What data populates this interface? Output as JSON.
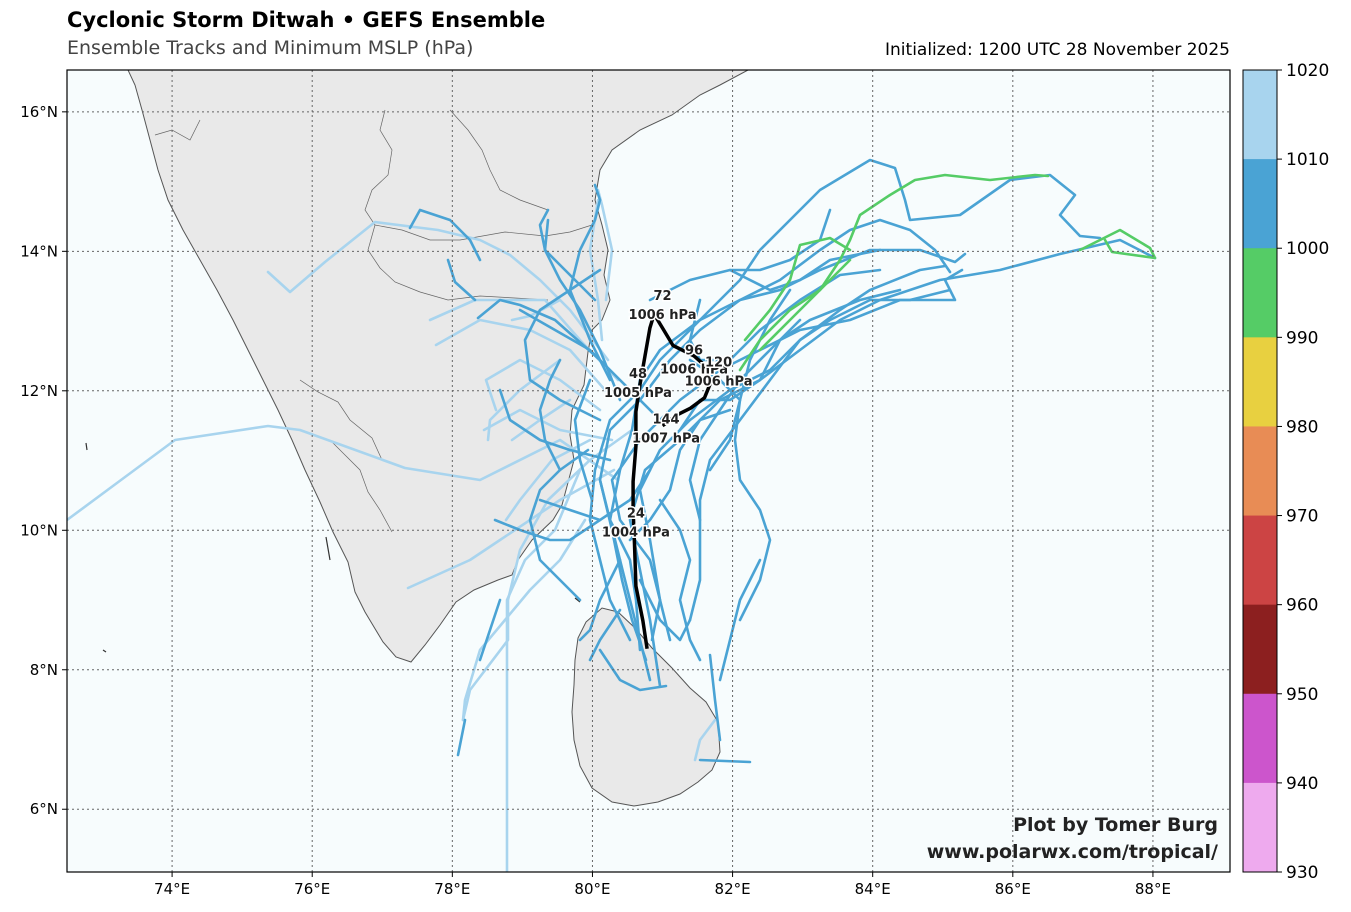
{
  "header": {
    "title": "Cyclonic Storm Ditwah • GEFS Ensemble",
    "subtitle": "Ensemble Tracks and Minimum MSLP (hPa)",
    "initialized": "Initialized: 1200 UTC 28 November 2025"
  },
  "credit": {
    "line1": "Plot by Tomer Burg",
    "line2": "www.polarwx.com/tropical/"
  },
  "axes": {
    "lon_range": [
      72.5,
      89.1
    ],
    "lat_range": [
      5.1,
      16.6
    ],
    "x_ticks": [
      "74°E",
      "76°E",
      "78°E",
      "80°E",
      "82°E",
      "84°E",
      "86°E",
      "88°E"
    ],
    "x_tick_values": [
      74,
      76,
      78,
      80,
      82,
      84,
      86,
      88
    ],
    "y_ticks": [
      "16°N",
      "14°N",
      "12°N",
      "10°N",
      "8°N",
      "6°N"
    ],
    "y_tick_values": [
      16,
      14,
      12,
      10,
      8,
      6
    ],
    "grid": true
  },
  "colorbar": {
    "ticks": [
      "1020",
      "1010",
      "1000",
      "990",
      "980",
      "970",
      "960",
      "950",
      "940",
      "930"
    ],
    "colors": [
      "#a8d4ee",
      "#4aa3d4",
      "#55cc66",
      "#e8d040",
      "#e88c55",
      "#cc4444",
      "#8c1f1f",
      "#cc55cc",
      "#eeaaee"
    ]
  },
  "colors": {
    "ocean": "#f7fcfd",
    "land": "#e9e9e9",
    "coast": "#555555",
    "track_1000_1010": "#4aa3d4",
    "track_1010_1020": "#a8d4ee",
    "track_990_1000": "#55cc66",
    "mean_track": "#000000"
  },
  "mean_track": {
    "points": [
      [
        80.78,
        8.3
      ],
      [
        80.72,
        8.7
      ],
      [
        80.62,
        9.2
      ],
      [
        80.6,
        9.8
      ],
      [
        80.58,
        10.3
      ],
      [
        80.58,
        10.7
      ],
      [
        80.62,
        11.2
      ],
      [
        80.62,
        11.7
      ],
      [
        80.68,
        12.1
      ],
      [
        80.75,
        12.5
      ],
      [
        80.82,
        12.9
      ],
      [
        80.88,
        13.1
      ],
      [
        81.0,
        12.9
      ],
      [
        81.15,
        12.65
      ],
      [
        81.45,
        12.5
      ],
      [
        81.62,
        12.35
      ],
      [
        81.68,
        12.1
      ],
      [
        81.6,
        11.9
      ],
      [
        81.4,
        11.75
      ],
      [
        81.2,
        11.65
      ],
      [
        81.0,
        11.5
      ]
    ],
    "labels": [
      {
        "hour": "24",
        "mslp": "1004 hPa",
        "lon": 80.62,
        "lat": 10.18
      },
      {
        "hour": "48",
        "mslp": "1005 hPa",
        "lon": 80.65,
        "lat": 12.18
      },
      {
        "hour": "72",
        "mslp": "1006 hPa",
        "lon": 81.0,
        "lat": 13.3
      },
      {
        "hour": "96",
        "mslp": "1006 hPa",
        "lon": 81.45,
        "lat": 12.52
      },
      {
        "hour": "120",
        "mslp": "1006 hPa",
        "lon": 81.8,
        "lat": 12.35
      },
      {
        "hour": "144",
        "mslp": "1007 hPa",
        "lon": 81.05,
        "lat": 11.53
      }
    ]
  }
}
